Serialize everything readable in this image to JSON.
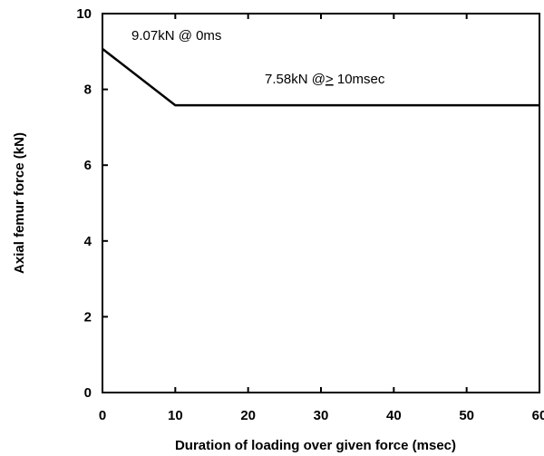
{
  "chart_data": {
    "type": "line",
    "title": "",
    "xlabel": "Duration of loading over given force (msec)",
    "ylabel": "Axial femur force (kN)",
    "xlim": [
      0,
      60
    ],
    "ylim": [
      0,
      10
    ],
    "xticks": [
      0,
      10,
      20,
      30,
      40,
      50,
      60
    ],
    "yticks": [
      0,
      2,
      4,
      6,
      8,
      10
    ],
    "grid": false,
    "legend": "none",
    "series": [
      {
        "x": [
          0,
          10,
          60
        ],
        "y": [
          9.07,
          7.58,
          7.58
        ]
      }
    ],
    "annotations": [
      {
        "prefix": "9.07kN @ 0ms",
        "underlined": "",
        "suffix": ""
      },
      {
        "prefix": "7.58kN @",
        "underlined": ">",
        "suffix": " 10msec"
      }
    ]
  }
}
